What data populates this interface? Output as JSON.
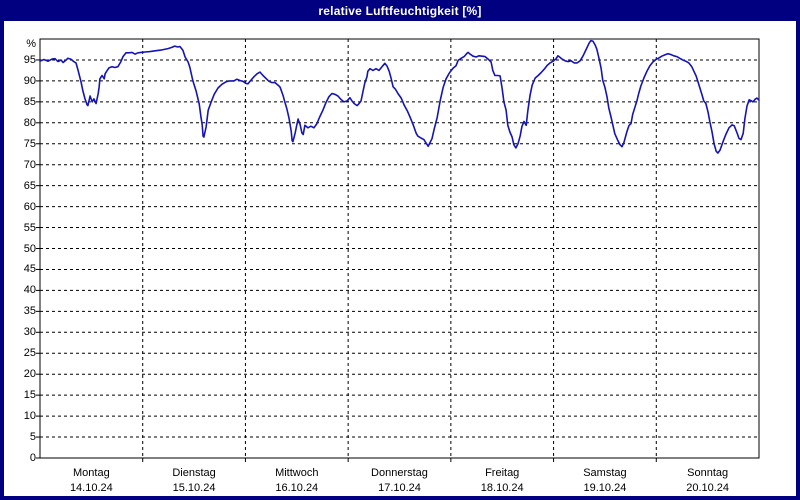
{
  "window": {
    "title": "relative Luftfeuchtigkeit [%]"
  },
  "colors": {
    "frame": "#000080",
    "titlebar_text": "#ffffff",
    "plot_bg": "#ffffff",
    "line": "#1414b8",
    "grid": "#000000",
    "text": "#000000"
  },
  "chart_data": {
    "type": "line",
    "title": "relative Luftfeuchtigkeit [%]",
    "ylabel": "%",
    "ylim": [
      0,
      100
    ],
    "y_ticks": [
      0,
      5,
      10,
      15,
      20,
      25,
      30,
      35,
      40,
      45,
      50,
      55,
      60,
      65,
      70,
      75,
      80,
      85,
      90,
      95
    ],
    "grid": "dashed",
    "legend": "none",
    "x_range_hours": [
      0,
      168
    ],
    "days": [
      {
        "name": "Montag",
        "date": "14.10.24"
      },
      {
        "name": "Dienstag",
        "date": "15.10.24"
      },
      {
        "name": "Mittwoch",
        "date": "16.10.24"
      },
      {
        "name": "Donnerstag",
        "date": "17.10.24"
      },
      {
        "name": "Freitag",
        "date": "18.10.24"
      },
      {
        "name": "Samstag",
        "date": "19.10.24"
      },
      {
        "name": "Sonntag",
        "date": "20.10.24"
      }
    ],
    "series": [
      {
        "name": "relative Luftfeuchtigkeit",
        "unit": "%",
        "points": [
          [
            0.0,
            94.7
          ],
          [
            0.9,
            95.1
          ],
          [
            1.9,
            94.7
          ],
          [
            2.8,
            95.2
          ],
          [
            3.5,
            95.3
          ],
          [
            4.2,
            94.6
          ],
          [
            4.9,
            95.0
          ],
          [
            5.4,
            94.4
          ],
          [
            6.1,
            95.0
          ],
          [
            6.5,
            95.4
          ],
          [
            7.2,
            95.2
          ],
          [
            7.9,
            94.6
          ],
          [
            8.4,
            94.3
          ],
          [
            8.9,
            92.5
          ],
          [
            9.6,
            89.7
          ],
          [
            10.0,
            87.7
          ],
          [
            10.5,
            85.8
          ],
          [
            11.0,
            84.3
          ],
          [
            11.2,
            84.1
          ],
          [
            11.7,
            86.4
          ],
          [
            12.2,
            85.0
          ],
          [
            12.6,
            85.7
          ],
          [
            13.1,
            84.6
          ],
          [
            13.6,
            87.0
          ],
          [
            13.8,
            88.5
          ],
          [
            14.0,
            90.5
          ],
          [
            14.5,
            91.3
          ],
          [
            15.0,
            90.5
          ],
          [
            15.2,
            91.7
          ],
          [
            15.7,
            92.5
          ],
          [
            16.1,
            93.1
          ],
          [
            16.8,
            93.4
          ],
          [
            17.5,
            93.2
          ],
          [
            18.2,
            93.4
          ],
          [
            18.9,
            94.6
          ],
          [
            19.4,
            95.8
          ],
          [
            20.1,
            96.7
          ],
          [
            20.8,
            96.7
          ],
          [
            21.5,
            96.8
          ],
          [
            22.2,
            96.4
          ],
          [
            22.9,
            96.7
          ],
          [
            23.6,
            96.8
          ],
          [
            24.5,
            96.9
          ],
          [
            25.7,
            97.0
          ],
          [
            27.1,
            97.2
          ],
          [
            28.5,
            97.4
          ],
          [
            29.9,
            97.7
          ],
          [
            30.8,
            98.0
          ],
          [
            31.5,
            98.3
          ],
          [
            32.2,
            98.1
          ],
          [
            32.7,
            98.2
          ],
          [
            33.4,
            97.3
          ],
          [
            33.9,
            95.7
          ],
          [
            34.6,
            94.5
          ],
          [
            35.0,
            93.3
          ],
          [
            35.7,
            90.1
          ],
          [
            36.5,
            87.5
          ],
          [
            37.2,
            84.5
          ],
          [
            37.6,
            81.5
          ],
          [
            37.9,
            79.5
          ],
          [
            38.1,
            76.8
          ],
          [
            38.3,
            76.6
          ],
          [
            38.8,
            79.0
          ],
          [
            39.3,
            83.0
          ],
          [
            40.0,
            85.0
          ],
          [
            40.7,
            86.8
          ],
          [
            41.6,
            88.3
          ],
          [
            42.5,
            89.2
          ],
          [
            43.5,
            89.8
          ],
          [
            44.4,
            90.0
          ],
          [
            45.3,
            90.0
          ],
          [
            46.0,
            90.4
          ],
          [
            46.7,
            90.1
          ],
          [
            47.4,
            89.9
          ],
          [
            48.1,
            89.4
          ],
          [
            48.6,
            89.3
          ],
          [
            49.3,
            90.2
          ],
          [
            50.0,
            91.0
          ],
          [
            50.7,
            91.7
          ],
          [
            51.4,
            92.1
          ],
          [
            52.1,
            91.3
          ],
          [
            52.8,
            90.6
          ],
          [
            53.5,
            89.9
          ],
          [
            54.2,
            89.6
          ],
          [
            54.9,
            89.6
          ],
          [
            55.6,
            89.0
          ],
          [
            56.1,
            88.5
          ],
          [
            56.8,
            86.5
          ],
          [
            57.2,
            85.0
          ],
          [
            57.7,
            83.3
          ],
          [
            58.2,
            81.0
          ],
          [
            58.7,
            78.0
          ],
          [
            58.9,
            75.8
          ],
          [
            59.1,
            75.5
          ],
          [
            59.6,
            77.5
          ],
          [
            60.0,
            79.5
          ],
          [
            60.3,
            80.9
          ],
          [
            60.8,
            79.5
          ],
          [
            61.2,
            77.6
          ],
          [
            61.5,
            77.2
          ],
          [
            61.9,
            79.4
          ],
          [
            62.6,
            78.8
          ],
          [
            63.3,
            79.2
          ],
          [
            64.0,
            78.8
          ],
          [
            64.7,
            79.8
          ],
          [
            65.4,
            81.5
          ],
          [
            66.1,
            83.0
          ],
          [
            66.8,
            84.8
          ],
          [
            67.5,
            86.2
          ],
          [
            68.2,
            87.0
          ],
          [
            68.9,
            86.8
          ],
          [
            69.6,
            86.4
          ],
          [
            70.3,
            85.6
          ],
          [
            71.0,
            85.0
          ],
          [
            71.7,
            85.2
          ],
          [
            72.4,
            86.0
          ],
          [
            72.9,
            85.2
          ],
          [
            73.4,
            84.6
          ],
          [
            74.1,
            84.1
          ],
          [
            74.5,
            84.5
          ],
          [
            75.0,
            85.2
          ],
          [
            75.5,
            87.6
          ],
          [
            75.9,
            89.5
          ],
          [
            76.4,
            91.0
          ],
          [
            76.6,
            92.3
          ],
          [
            77.1,
            92.9
          ],
          [
            77.8,
            92.5
          ],
          [
            78.5,
            92.9
          ],
          [
            79.2,
            92.5
          ],
          [
            79.9,
            93.4
          ],
          [
            80.6,
            94.2
          ],
          [
            81.1,
            93.5
          ],
          [
            81.6,
            92.3
          ],
          [
            82.0,
            90.8
          ],
          [
            82.5,
            88.6
          ],
          [
            83.0,
            88.1
          ],
          [
            83.7,
            86.9
          ],
          [
            84.4,
            85.9
          ],
          [
            85.1,
            84.2
          ],
          [
            85.8,
            82.9
          ],
          [
            86.5,
            81.3
          ],
          [
            87.2,
            79.5
          ],
          [
            87.9,
            77.5
          ],
          [
            88.3,
            76.8
          ],
          [
            89.0,
            76.4
          ],
          [
            89.7,
            76.0
          ],
          [
            90.2,
            75.2
          ],
          [
            90.7,
            74.4
          ],
          [
            91.1,
            75.2
          ],
          [
            91.6,
            76.2
          ],
          [
            92.1,
            78.5
          ],
          [
            92.8,
            81.3
          ],
          [
            93.5,
            85.3
          ],
          [
            94.2,
            88.5
          ],
          [
            94.9,
            90.5
          ],
          [
            95.6,
            91.8
          ],
          [
            96.0,
            92.4
          ],
          [
            96.5,
            93.0
          ],
          [
            97.2,
            93.6
          ],
          [
            97.7,
            94.9
          ],
          [
            98.4,
            95.4
          ],
          [
            99.1,
            95.8
          ],
          [
            99.8,
            96.6
          ],
          [
            100.0,
            96.8
          ],
          [
            100.5,
            96.4
          ],
          [
            101.2,
            95.9
          ],
          [
            101.9,
            95.7
          ],
          [
            102.6,
            96.0
          ],
          [
            103.3,
            95.9
          ],
          [
            104.0,
            95.8
          ],
          [
            104.7,
            95.2
          ],
          [
            105.4,
            94.5
          ],
          [
            105.8,
            92.5
          ],
          [
            106.3,
            91.3
          ],
          [
            107.0,
            91.3
          ],
          [
            107.5,
            91.2
          ],
          [
            108.0,
            88.1
          ],
          [
            108.4,
            85.0
          ],
          [
            108.9,
            83.0
          ],
          [
            109.3,
            79.4
          ],
          [
            109.8,
            77.8
          ],
          [
            110.3,
            76.6
          ],
          [
            110.7,
            74.8
          ],
          [
            111.2,
            74.0
          ],
          [
            111.7,
            75.0
          ],
          [
            112.2,
            76.9
          ],
          [
            112.6,
            79.1
          ],
          [
            113.1,
            80.3
          ],
          [
            113.6,
            79.4
          ],
          [
            114.0,
            83.0
          ],
          [
            114.5,
            86.5
          ],
          [
            115.0,
            89.0
          ],
          [
            115.7,
            90.7
          ],
          [
            116.4,
            91.3
          ],
          [
            117.1,
            92.0
          ],
          [
            117.8,
            92.8
          ],
          [
            118.5,
            93.7
          ],
          [
            119.2,
            94.3
          ],
          [
            119.9,
            94.7
          ],
          [
            120.6,
            95.3
          ],
          [
            121.0,
            96.0
          ],
          [
            121.5,
            95.6
          ],
          [
            122.0,
            95.2
          ],
          [
            122.7,
            94.8
          ],
          [
            123.4,
            94.6
          ],
          [
            124.1,
            94.8
          ],
          [
            124.8,
            94.3
          ],
          [
            125.5,
            94.3
          ],
          [
            126.2,
            94.8
          ],
          [
            126.9,
            96.0
          ],
          [
            127.6,
            97.5
          ],
          [
            128.3,
            99.0
          ],
          [
            128.7,
            99.6
          ],
          [
            129.2,
            99.5
          ],
          [
            129.7,
            98.6
          ],
          [
            130.1,
            97.6
          ],
          [
            130.6,
            95.5
          ],
          [
            131.1,
            93.0
          ],
          [
            131.5,
            90.1
          ],
          [
            132.0,
            88.5
          ],
          [
            132.5,
            86.1
          ],
          [
            132.9,
            83.5
          ],
          [
            133.4,
            81.5
          ],
          [
            133.9,
            79.2
          ],
          [
            134.3,
            77.4
          ],
          [
            135.0,
            75.8
          ],
          [
            135.5,
            74.8
          ],
          [
            136.0,
            74.3
          ],
          [
            136.4,
            75.2
          ],
          [
            137.1,
            77.8
          ],
          [
            137.6,
            79.3
          ],
          [
            138.1,
            79.8
          ],
          [
            138.5,
            82.0
          ],
          [
            139.0,
            83.7
          ],
          [
            139.5,
            85.3
          ],
          [
            139.9,
            87.0
          ],
          [
            140.4,
            88.8
          ],
          [
            141.1,
            90.7
          ],
          [
            141.8,
            92.3
          ],
          [
            142.5,
            93.6
          ],
          [
            143.2,
            94.5
          ],
          [
            143.9,
            95.1
          ],
          [
            144.6,
            95.5
          ],
          [
            145.3,
            95.9
          ],
          [
            146.0,
            96.2
          ],
          [
            146.7,
            96.5
          ],
          [
            147.4,
            96.3
          ],
          [
            148.1,
            96.0
          ],
          [
            148.8,
            95.8
          ],
          [
            149.5,
            95.4
          ],
          [
            150.2,
            95.0
          ],
          [
            150.9,
            94.7
          ],
          [
            151.6,
            94.3
          ],
          [
            152.3,
            93.4
          ],
          [
            152.8,
            92.3
          ],
          [
            153.3,
            91.2
          ],
          [
            153.7,
            89.9
          ],
          [
            154.2,
            88.3
          ],
          [
            154.7,
            86.6
          ],
          [
            155.1,
            85.2
          ],
          [
            155.6,
            84.6
          ],
          [
            156.1,
            82.5
          ],
          [
            156.5,
            80.3
          ],
          [
            157.0,
            78.0
          ],
          [
            157.5,
            75.0
          ],
          [
            158.0,
            73.2
          ],
          [
            158.4,
            72.8
          ],
          [
            158.9,
            73.5
          ],
          [
            159.6,
            75.5
          ],
          [
            160.3,
            77.3
          ],
          [
            161.0,
            78.8
          ],
          [
            161.7,
            79.5
          ],
          [
            162.2,
            79.3
          ],
          [
            162.9,
            77.5
          ],
          [
            163.3,
            76.3
          ],
          [
            163.8,
            76.0
          ],
          [
            164.3,
            77.5
          ],
          [
            164.7,
            81.0
          ],
          [
            165.2,
            84.0
          ],
          [
            165.7,
            85.5
          ],
          [
            166.1,
            85.3
          ],
          [
            166.6,
            85.0
          ],
          [
            167.1,
            85.6
          ],
          [
            167.5,
            85.9
          ],
          [
            168.0,
            85.4
          ]
        ]
      }
    ]
  }
}
